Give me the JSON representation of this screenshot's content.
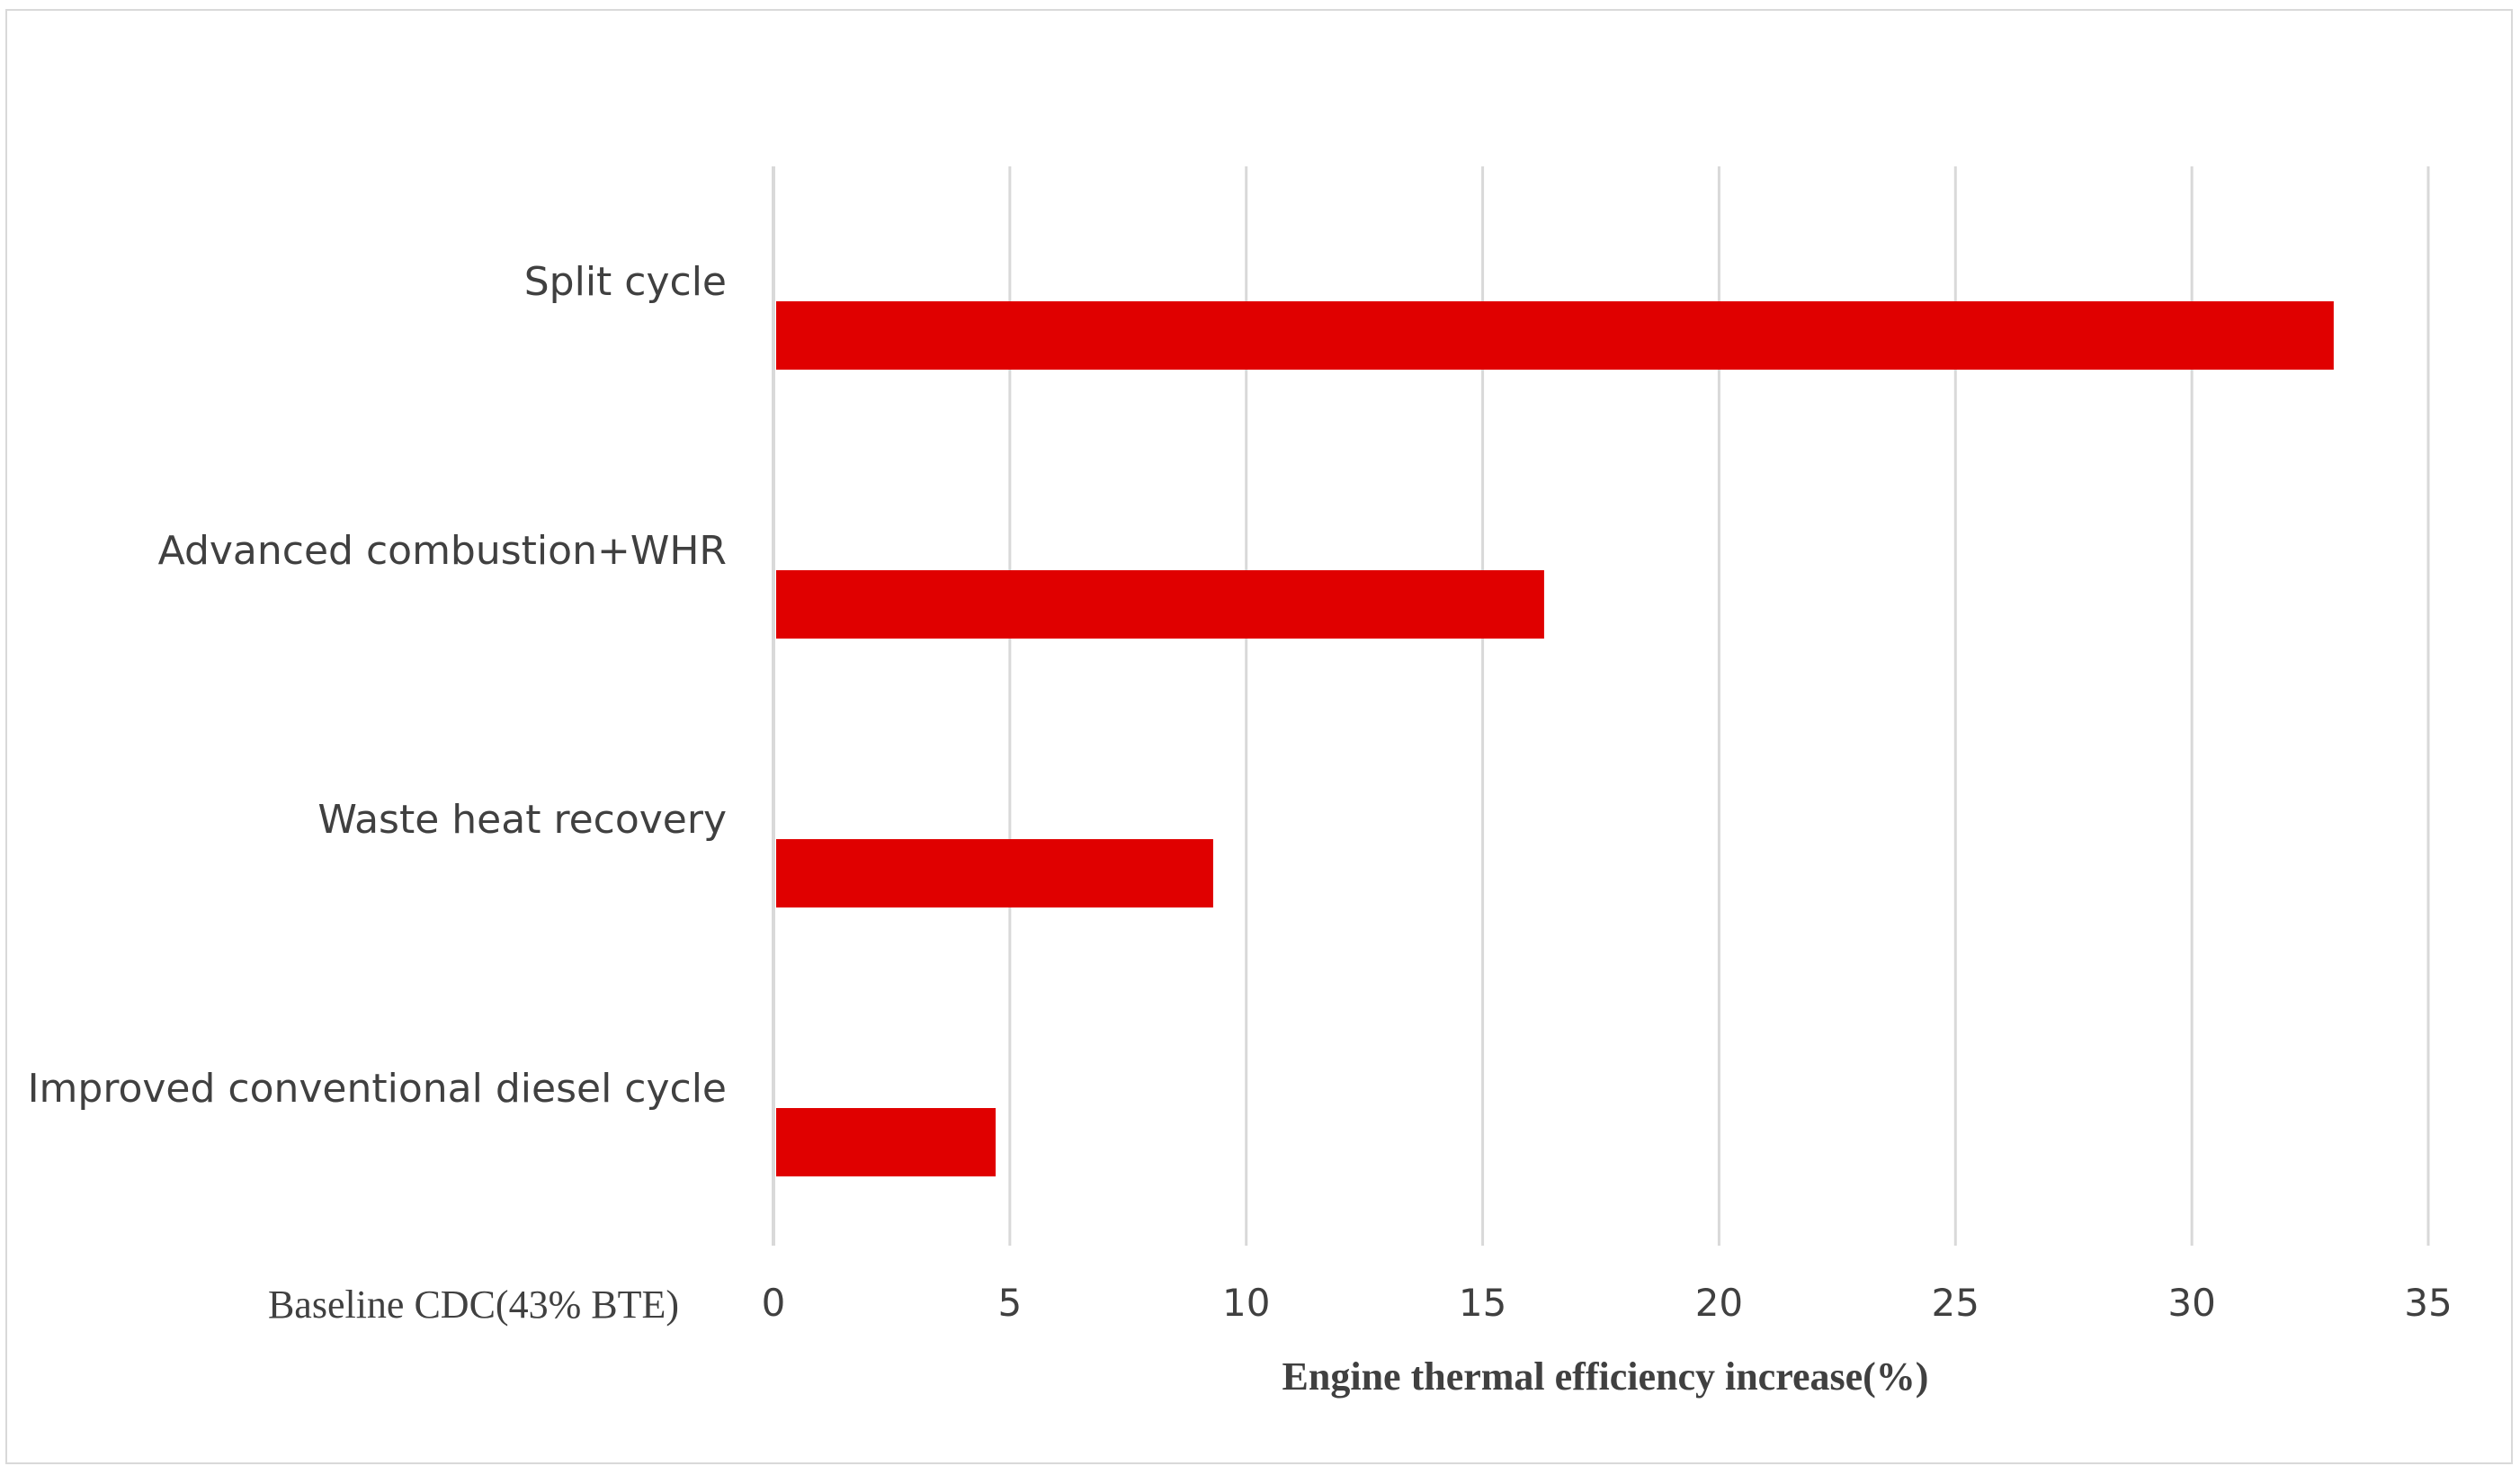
{
  "chart_data": {
    "type": "bar",
    "orientation": "horizontal",
    "categories": [
      "Split cycle",
      "Advanced combustion+WHR",
      "Waste heat recovery",
      "Improved conventional diesel cycle"
    ],
    "values": [
      33,
      16.3,
      9.3,
      4.7
    ],
    "baseline_label": "Baseline CDC(43% BTE)",
    "xlabel": "Engine thermal efficiency increase(%)",
    "ylabel": "",
    "xlim": [
      0,
      35
    ],
    "xticks": [
      0,
      5,
      10,
      15,
      20,
      25,
      30,
      35
    ],
    "grid": "vertical",
    "legend": "none",
    "bar_color": "#e00000",
    "grid_color": "#d9d9d9",
    "text_color": "#404040"
  }
}
